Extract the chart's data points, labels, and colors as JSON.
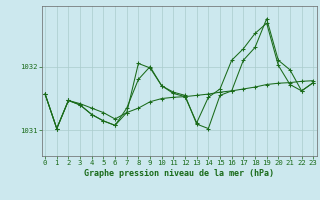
{
  "title": "Graphe pression niveau de la mer (hPa)",
  "background_color": "#cce8ee",
  "grid_color": "#aacccc",
  "line_color": "#1a6b1a",
  "x_min": 0,
  "x_max": 23,
  "y_min": 1030.6,
  "y_max": 1032.95,
  "y_ticks": [
    1031,
    1032
  ],
  "x_ticks": [
    0,
    1,
    2,
    3,
    4,
    5,
    6,
    7,
    8,
    9,
    10,
    11,
    12,
    13,
    14,
    15,
    16,
    17,
    18,
    19,
    20,
    21,
    22,
    23
  ],
  "s1_y": [
    1031.57,
    1031.03,
    1031.47,
    1031.42,
    1031.35,
    1031.28,
    1031.18,
    1031.28,
    1031.35,
    1031.45,
    1031.5,
    1031.52,
    1031.53,
    1031.55,
    1031.57,
    1031.6,
    1031.62,
    1031.65,
    1031.68,
    1031.72,
    1031.74,
    1031.75,
    1031.77,
    1031.78
  ],
  "s2_y": [
    1031.57,
    1031.03,
    1031.47,
    1031.4,
    1031.25,
    1031.15,
    1031.08,
    1031.28,
    1032.05,
    1031.98,
    1031.7,
    1031.58,
    1031.53,
    1031.12,
    1031.52,
    1031.65,
    1032.1,
    1032.28,
    1032.52,
    1032.68,
    1032.02,
    1031.72,
    1031.62,
    1031.75
  ],
  "s3_y": [
    1031.57,
    1031.03,
    1031.47,
    1031.4,
    1031.25,
    1031.15,
    1031.08,
    1031.35,
    1031.8,
    1032.0,
    1031.7,
    1031.6,
    1031.55,
    1031.1,
    1031.03,
    1031.55,
    1031.62,
    1032.1,
    1032.3,
    1032.75,
    1032.1,
    1031.95,
    1031.62,
    1031.75
  ],
  "title_fontsize": 6.0,
  "tick_fontsize": 5.2
}
